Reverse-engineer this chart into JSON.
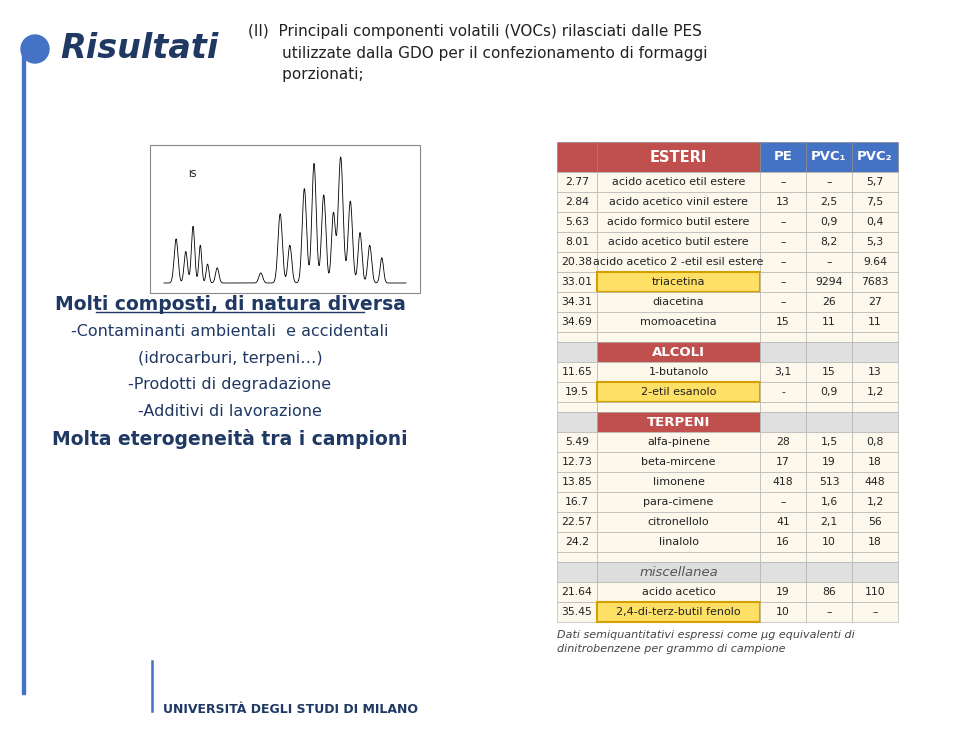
{
  "bg_color": "#ffffff",
  "dot_color": "#4472c4",
  "risultati_color": "#1f3864",
  "section_color": "#c0504d",
  "header_color": "#4472c4",
  "table_bg": "#fdf8ec",
  "highlight_color": "#ffe066",
  "highlight_border": "#d4a000",
  "col_headers": [
    "PE",
    "PVC₁",
    "PVC₂"
  ],
  "left_texts": [
    {
      "text": "Molti composti, di natura diversa",
      "bold": true,
      "underline": true,
      "size": 13.5,
      "color": "#1f3864"
    },
    {
      "text": "-Contaminanti ambientali  e accidentali",
      "bold": false,
      "underline": false,
      "size": 11.5,
      "color": "#1f3864"
    },
    {
      "text": "(idrocarburi, terpeni…)",
      "bold": false,
      "underline": false,
      "size": 11.5,
      "color": "#1f3864"
    },
    {
      "text": "-Prodotti di degradazione",
      "bold": false,
      "underline": false,
      "size": 11.5,
      "color": "#1f3864"
    },
    {
      "text": "-Additivi di lavorazione",
      "bold": false,
      "underline": false,
      "size": 11.5,
      "color": "#1f3864"
    },
    {
      "text": "Molta eterogeneità tra i campioni",
      "bold": true,
      "underline": false,
      "size": 13.5,
      "color": "#1f3864"
    }
  ],
  "sections": [
    {
      "name": "ESTERI",
      "italic": false,
      "rows": [
        {
          "rt": "2.77",
          "compound": "acido acetico etil estere",
          "pe": "–",
          "pvc1": "–",
          "pvc2": "5,7",
          "highlight": false
        },
        {
          "rt": "2.84",
          "compound": "acido acetico vinil estere",
          "pe": "13",
          "pvc1": "2,5",
          "pvc2": "7,5",
          "highlight": false
        },
        {
          "rt": "5.63",
          "compound": "acido formico butil estere",
          "pe": "–",
          "pvc1": "0,9",
          "pvc2": "0,4",
          "highlight": false
        },
        {
          "rt": "8.01",
          "compound": "acido acetico butil estere",
          "pe": "–",
          "pvc1": "8,2",
          "pvc2": "5,3",
          "highlight": false
        },
        {
          "rt": "20.38",
          "compound": "acido acetico 2 -etil esil estere",
          "pe": "–",
          "pvc1": "–",
          "pvc2": "9.64",
          "highlight": false
        },
        {
          "rt": "33.01",
          "compound": "triacetina",
          "pe": "–",
          "pvc1": "9294",
          "pvc2": "7683",
          "highlight": true
        },
        {
          "rt": "34.31",
          "compound": "diacetina",
          "pe": "–",
          "pvc1": "26",
          "pvc2": "27",
          "highlight": false
        },
        {
          "rt": "34.69",
          "compound": "momoacetina",
          "pe": "15",
          "pvc1": "11",
          "pvc2": "11",
          "highlight": false
        }
      ]
    },
    {
      "name": "ALCOLI",
      "italic": false,
      "rows": [
        {
          "rt": "11.65",
          "compound": "1-butanolo",
          "pe": "3,1",
          "pvc1": "15",
          "pvc2": "13",
          "highlight": false
        },
        {
          "rt": "19.5",
          "compound": "2-etil esanolo",
          "pe": "-",
          "pvc1": "0,9",
          "pvc2": "1,2",
          "highlight": true
        }
      ]
    },
    {
      "name": "TERPENI",
      "italic": false,
      "rows": [
        {
          "rt": "5.49",
          "compound": "alfa-pinene",
          "pe": "28",
          "pvc1": "1,5",
          "pvc2": "0,8",
          "highlight": false
        },
        {
          "rt": "12.73",
          "compound": "beta-mircene",
          "pe": "17",
          "pvc1": "19",
          "pvc2": "18",
          "highlight": false
        },
        {
          "rt": "13.85",
          "compound": "limonene",
          "pe": "418",
          "pvc1": "513",
          "pvc2": "448",
          "highlight": false
        },
        {
          "rt": "16.7",
          "compound": "para-cimene",
          "pe": "–",
          "pvc1": "1,6",
          "pvc2": "1,2",
          "highlight": false
        },
        {
          "rt": "22.57",
          "compound": "citronellolo",
          "pe": "41",
          "pvc1": "2,1",
          "pvc2": "56",
          "highlight": false
        },
        {
          "rt": "24.2",
          "compound": "linalolo",
          "pe": "16",
          "pvc1": "10",
          "pvc2": "18",
          "highlight": false
        }
      ]
    },
    {
      "name": "miscellanea",
      "italic": true,
      "rows": [
        {
          "rt": "21.64",
          "compound": "acido acetico",
          "pe": "19",
          "pvc1": "86",
          "pvc2": "110",
          "highlight": false
        },
        {
          "rt": "35.45",
          "compound": "2,4-di-terz-butil fenolo",
          "pe": "10",
          "pvc1": "–",
          "pvc2": "–",
          "highlight": true
        }
      ]
    }
  ],
  "footer_note": "Dati semiquantitativi espressi come μg equivalenti di\ndinitrobenzene per grammo di campione",
  "uni_text": "UNIVERSITÀ DEGLI STUDI DI MILANO",
  "top_title": "(II)  Principali componenti volatili (VOCs) rilasciati dalle PES\n       utilizzate dalla GDO per il confezionamento di formaggi\n       porzionati;"
}
